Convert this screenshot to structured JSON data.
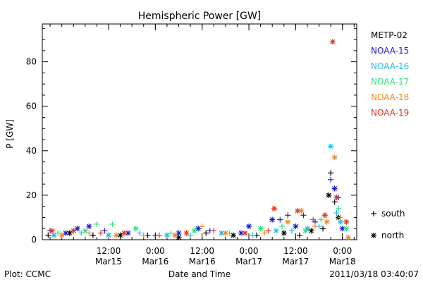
{
  "chart_data": {
    "type": "scatter",
    "title": "Hemispheric Power [GW]",
    "xlabel": "Date and Time",
    "ylabel": "P [GW]",
    "xlim": [
      "2011-03-14T19:00",
      "2011-03-18T03:40"
    ],
    "ylim": [
      0,
      97
    ],
    "yticks": [
      0,
      20,
      40,
      60,
      80
    ],
    "xticks": [
      {
        "at": "2011-03-15T12:00",
        "label": [
          "12:00",
          "Mar15"
        ]
      },
      {
        "at": "2011-03-16T00:00",
        "label": [
          "0:00",
          "Mar16"
        ]
      },
      {
        "at": "2011-03-16T12:00",
        "label": [
          "12:00",
          "Mar16"
        ]
      },
      {
        "at": "2011-03-17T00:00",
        "label": [
          "0:00",
          "Mar17"
        ]
      },
      {
        "at": "2011-03-17T12:00",
        "label": [
          "12:00",
          "Mar17"
        ]
      },
      {
        "at": "2011-03-18T00:00",
        "label": [
          "0:00",
          "Mar18"
        ]
      }
    ],
    "legend": {
      "placement": "right",
      "entries": [
        {
          "name": "METP-02",
          "color": "#000000"
        },
        {
          "name": "NOAA-15",
          "color": "#1a1ad6"
        },
        {
          "name": "NOAA-16",
          "color": "#22b8e8"
        },
        {
          "name": "NOAA-17",
          "color": "#33e07a"
        },
        {
          "name": "NOAA-18",
          "color": "#f08c1a"
        },
        {
          "name": "NOAA-19",
          "color": "#e0341e"
        }
      ],
      "markers": [
        {
          "symbol": "+",
          "label": "south"
        },
        {
          "symbol": "*",
          "label": "north"
        }
      ]
    },
    "series": [
      {
        "name": "METP-02",
        "color": "#000000",
        "points": [
          [
            "2011-03-14T20:30",
            2,
            "+"
          ],
          [
            "2011-03-15T02:00",
            3,
            "*"
          ],
          [
            "2011-03-15T08:00",
            2,
            "+"
          ],
          [
            "2011-03-15T15:00",
            2,
            "*"
          ],
          [
            "2011-03-15T22:00",
            2,
            "+"
          ],
          [
            "2011-03-16T06:00",
            1,
            "*"
          ],
          [
            "2011-03-16T13:00",
            3,
            "+"
          ],
          [
            "2011-03-16T20:00",
            2,
            "*"
          ],
          [
            "2011-03-17T02:00",
            2,
            "+"
          ],
          [
            "2011-03-17T09:00",
            3,
            "*"
          ],
          [
            "2011-03-17T13:00",
            2,
            "+"
          ],
          [
            "2011-03-17T16:00",
            4,
            "*"
          ],
          [
            "2011-03-17T19:00",
            5,
            "+"
          ],
          [
            "2011-03-17T20:30",
            20,
            "*"
          ],
          [
            "2011-03-17T21:00",
            30,
            "+"
          ],
          [
            "2011-03-17T22:00",
            17,
            "+"
          ],
          [
            "2011-03-17T23:00",
            10,
            "*"
          ]
        ]
      },
      {
        "name": "NOAA-15",
        "color": "#1a1ad6",
        "points": [
          [
            "2011-03-14T21:00",
            4,
            "+"
          ],
          [
            "2011-03-15T01:00",
            3,
            "*"
          ],
          [
            "2011-03-15T04:00",
            5,
            "*"
          ],
          [
            "2011-03-15T07:00",
            6,
            "*"
          ],
          [
            "2011-03-15T11:00",
            4,
            "+"
          ],
          [
            "2011-03-15T17:00",
            3,
            "*"
          ],
          [
            "2011-03-16T00:00",
            2,
            "+"
          ],
          [
            "2011-03-16T06:00",
            3,
            "*"
          ],
          [
            "2011-03-16T11:00",
            5,
            "*"
          ],
          [
            "2011-03-16T14:00",
            4,
            "+"
          ],
          [
            "2011-03-16T22:00",
            3,
            "*"
          ],
          [
            "2011-03-17T00:00",
            6,
            "*"
          ],
          [
            "2011-03-17T06:00",
            9,
            "*"
          ],
          [
            "2011-03-17T08:00",
            9,
            "+"
          ],
          [
            "2011-03-17T10:00",
            11,
            "+"
          ],
          [
            "2011-03-17T12:00",
            6,
            "*"
          ],
          [
            "2011-03-17T14:00",
            11,
            "+"
          ],
          [
            "2011-03-17T17:00",
            8,
            "+"
          ],
          [
            "2011-03-17T21:00",
            27,
            "+"
          ],
          [
            "2011-03-17T22:00",
            23,
            "*"
          ],
          [
            "2011-03-17T23:00",
            19,
            "+"
          ],
          [
            "2011-03-18T00:00",
            5,
            "*"
          ]
        ]
      },
      {
        "name": "NOAA-16",
        "color": "#22b8e8",
        "points": [
          [
            "2011-03-14T22:00",
            2,
            "*"
          ],
          [
            "2011-03-15T05:00",
            3,
            "+"
          ],
          [
            "2011-03-15T12:00",
            2,
            "*"
          ],
          [
            "2011-03-15T20:00",
            3,
            "+"
          ],
          [
            "2011-03-16T03:00",
            2,
            "*"
          ],
          [
            "2011-03-16T09:00",
            2,
            "+"
          ],
          [
            "2011-03-16T17:00",
            3,
            "*"
          ],
          [
            "2011-03-17T01:00",
            2,
            "+"
          ],
          [
            "2011-03-17T07:00",
            4,
            "*"
          ],
          [
            "2011-03-17T11:00",
            4,
            "+"
          ],
          [
            "2011-03-17T15:00",
            5,
            "*"
          ],
          [
            "2011-03-17T18:00",
            6,
            "+"
          ],
          [
            "2011-03-17T21:00",
            42,
            "*"
          ],
          [
            "2011-03-17T22:30",
            12,
            "+"
          ],
          [
            "2011-03-17T23:30",
            8,
            "*"
          ]
        ]
      },
      {
        "name": "NOAA-17",
        "color": "#33e07a",
        "points": [
          [
            "2011-03-14T23:00",
            3,
            "+"
          ],
          [
            "2011-03-15T06:00",
            4,
            "*"
          ],
          [
            "2011-03-15T09:00",
            7,
            "+"
          ],
          [
            "2011-03-15T13:00",
            7,
            "+"
          ],
          [
            "2011-03-15T19:00",
            5,
            "*"
          ],
          [
            "2011-03-16T04:00",
            3,
            "+"
          ],
          [
            "2011-03-16T10:00",
            4,
            "*"
          ],
          [
            "2011-03-16T19:00",
            3,
            "+"
          ],
          [
            "2011-03-17T03:00",
            5,
            "*"
          ],
          [
            "2011-03-17T08:30",
            6,
            "+"
          ],
          [
            "2011-03-17T14:30",
            4,
            "*"
          ],
          [
            "2011-03-17T18:30",
            9,
            "+"
          ],
          [
            "2011-03-17T23:00",
            14,
            "+"
          ],
          [
            "2011-03-18T01:00",
            5,
            "*"
          ]
        ]
      },
      {
        "name": "NOAA-18",
        "color": "#f08c1a",
        "points": [
          [
            "2011-03-15T00:00",
            2,
            "*"
          ],
          [
            "2011-03-15T07:00",
            3,
            "+"
          ],
          [
            "2011-03-15T14:00",
            2,
            "*"
          ],
          [
            "2011-03-15T21:00",
            2,
            "+"
          ],
          [
            "2011-03-16T05:00",
            2,
            "*"
          ],
          [
            "2011-03-16T12:00",
            6,
            "+"
          ],
          [
            "2011-03-16T18:00",
            3,
            "*"
          ],
          [
            "2011-03-17T04:00",
            3,
            "+"
          ],
          [
            "2011-03-17T10:00",
            8,
            "*"
          ],
          [
            "2011-03-17T13:30",
            13,
            "*"
          ],
          [
            "2011-03-17T17:00",
            6,
            "+"
          ],
          [
            "2011-03-17T20:00",
            8,
            "*"
          ],
          [
            "2011-03-17T22:00",
            37,
            "*"
          ],
          [
            "2011-03-17T23:30",
            10,
            "+"
          ],
          [
            "2011-03-18T01:30",
            1,
            "*"
          ]
        ]
      },
      {
        "name": "NOAA-19",
        "color": "#e0341e",
        "points": [
          [
            "2011-03-14T21:30",
            4,
            "*"
          ],
          [
            "2011-03-15T03:00",
            4,
            "*"
          ],
          [
            "2011-03-15T10:00",
            3,
            "+"
          ],
          [
            "2011-03-15T16:00",
            3,
            "*"
          ],
          [
            "2011-03-16T01:00",
            2,
            "+"
          ],
          [
            "2011-03-16T08:00",
            3,
            "*"
          ],
          [
            "2011-03-16T15:00",
            4,
            "+"
          ],
          [
            "2011-03-16T23:00",
            3,
            "*"
          ],
          [
            "2011-03-17T05:00",
            4,
            "+"
          ],
          [
            "2011-03-17T06:30",
            14,
            "*"
          ],
          [
            "2011-03-17T12:30",
            13,
            "*"
          ],
          [
            "2011-03-17T16:30",
            9,
            "+"
          ],
          [
            "2011-03-17T19:30",
            11,
            "*"
          ],
          [
            "2011-03-17T21:30",
            89,
            "*"
          ],
          [
            "2011-03-17T22:30",
            19,
            "*"
          ],
          [
            "2011-03-18T01:00",
            8,
            "*"
          ]
        ]
      }
    ]
  },
  "footer": {
    "left": "Plot: CCMC",
    "right": "2011/03/18 03:40:07"
  }
}
